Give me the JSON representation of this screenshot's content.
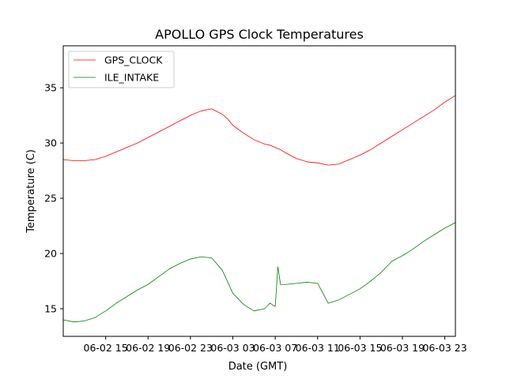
{
  "chart_data": {
    "type": "line",
    "title": "APOLLO GPS Clock Temperatures",
    "xlabel": "Date (GMT)",
    "ylabel": "Temperature (C)",
    "x_axis": "datetime",
    "xlim": [
      "2019-06-02T11:00",
      "2019-06-04T00:00"
    ],
    "ylim": [
      12.5,
      38.8
    ],
    "x_ticks": [
      {
        "value": "2019-06-02T15:00",
        "label": "06-02 15"
      },
      {
        "value": "2019-06-02T19:00",
        "label": "06-02 19"
      },
      {
        "value": "2019-06-02T23:00",
        "label": "06-02 23"
      },
      {
        "value": "2019-06-03T03:00",
        "label": "06-03 03"
      },
      {
        "value": "2019-06-03T07:00",
        "label": "06-03 07"
      },
      {
        "value": "2019-06-03T11:00",
        "label": "06-03 11"
      },
      {
        "value": "2019-06-03T15:00",
        "label": "06-03 15"
      },
      {
        "value": "2019-06-03T19:00",
        "label": "06-03 19"
      },
      {
        "value": "2019-06-03T23:00",
        "label": "06-03 23"
      }
    ],
    "y_ticks": [
      15,
      20,
      25,
      30,
      35
    ],
    "grid": false,
    "legend": "top-left",
    "series": [
      {
        "name": "GPS_CLOCK",
        "color": "#ff0000",
        "x": [
          "2019-06-02T11:00",
          "2019-06-02T12:00",
          "2019-06-02T13:00",
          "2019-06-02T14:00",
          "2019-06-02T15:00",
          "2019-06-02T16:00",
          "2019-06-02T17:00",
          "2019-06-02T18:00",
          "2019-06-02T19:00",
          "2019-06-02T20:00",
          "2019-06-02T21:00",
          "2019-06-02T22:00",
          "2019-06-02T23:00",
          "2019-06-03T00:00",
          "2019-06-03T01:00",
          "2019-06-03T02:00",
          "2019-06-03T02:30",
          "2019-06-03T03:00",
          "2019-06-03T04:00",
          "2019-06-03T05:00",
          "2019-06-03T06:00",
          "2019-06-03T06:30",
          "2019-06-03T07:00",
          "2019-06-03T07:30",
          "2019-06-03T08:00",
          "2019-06-03T09:00",
          "2019-06-03T10:00",
          "2019-06-03T11:00",
          "2019-06-03T12:00",
          "2019-06-03T13:00",
          "2019-06-03T14:00",
          "2019-06-03T15:00",
          "2019-06-03T16:00",
          "2019-06-03T17:00",
          "2019-06-03T18:00",
          "2019-06-03T19:00",
          "2019-06-03T20:00",
          "2019-06-03T21:00",
          "2019-06-03T22:00",
          "2019-06-03T23:00",
          "2019-06-04T00:00"
        ],
        "y": [
          28.5,
          28.4,
          28.4,
          28.5,
          28.8,
          29.2,
          29.6,
          30.0,
          30.5,
          31.0,
          31.5,
          32.0,
          32.5,
          32.9,
          33.1,
          32.6,
          32.2,
          31.6,
          30.9,
          30.3,
          29.9,
          29.8,
          29.6,
          29.4,
          29.1,
          28.6,
          28.3,
          28.2,
          28.0,
          28.1,
          28.5,
          28.9,
          29.4,
          30.0,
          30.6,
          31.2,
          31.8,
          32.4,
          33.0,
          33.7,
          34.3
        ]
      },
      {
        "name": "ILE_INTAKE",
        "color": "#008000",
        "x": [
          "2019-06-02T11:00",
          "2019-06-02T12:00",
          "2019-06-02T13:00",
          "2019-06-02T14:00",
          "2019-06-02T15:00",
          "2019-06-02T16:00",
          "2019-06-02T17:00",
          "2019-06-02T18:00",
          "2019-06-02T19:00",
          "2019-06-02T20:00",
          "2019-06-02T21:00",
          "2019-06-02T22:00",
          "2019-06-02T23:00",
          "2019-06-03T00:00",
          "2019-06-03T01:00",
          "2019-06-03T02:00",
          "2019-06-03T03:00",
          "2019-06-03T04:00",
          "2019-06-03T05:00",
          "2019-06-03T06:00",
          "2019-06-03T06:30",
          "2019-06-03T07:00",
          "2019-06-03T07:15",
          "2019-06-03T07:30",
          "2019-06-03T08:00",
          "2019-06-03T09:00",
          "2019-06-03T10:00",
          "2019-06-03T11:00",
          "2019-06-03T12:00",
          "2019-06-03T13:00",
          "2019-06-03T14:00",
          "2019-06-03T15:00",
          "2019-06-03T16:00",
          "2019-06-03T17:00",
          "2019-06-03T18:00",
          "2019-06-03T19:00",
          "2019-06-03T20:00",
          "2019-06-03T21:00",
          "2019-06-03T22:00",
          "2019-06-03T23:00",
          "2019-06-04T00:00"
        ],
        "y": [
          14.0,
          13.8,
          13.9,
          14.2,
          14.8,
          15.5,
          16.1,
          16.7,
          17.2,
          17.9,
          18.6,
          19.1,
          19.5,
          19.7,
          19.6,
          18.5,
          16.4,
          15.4,
          14.8,
          15.0,
          15.5,
          15.2,
          18.8,
          17.2,
          17.2,
          17.3,
          17.4,
          17.3,
          15.5,
          15.8,
          16.3,
          16.8,
          17.5,
          18.3,
          19.3,
          19.8,
          20.4,
          21.1,
          21.7,
          22.3,
          22.8
        ]
      }
    ]
  }
}
